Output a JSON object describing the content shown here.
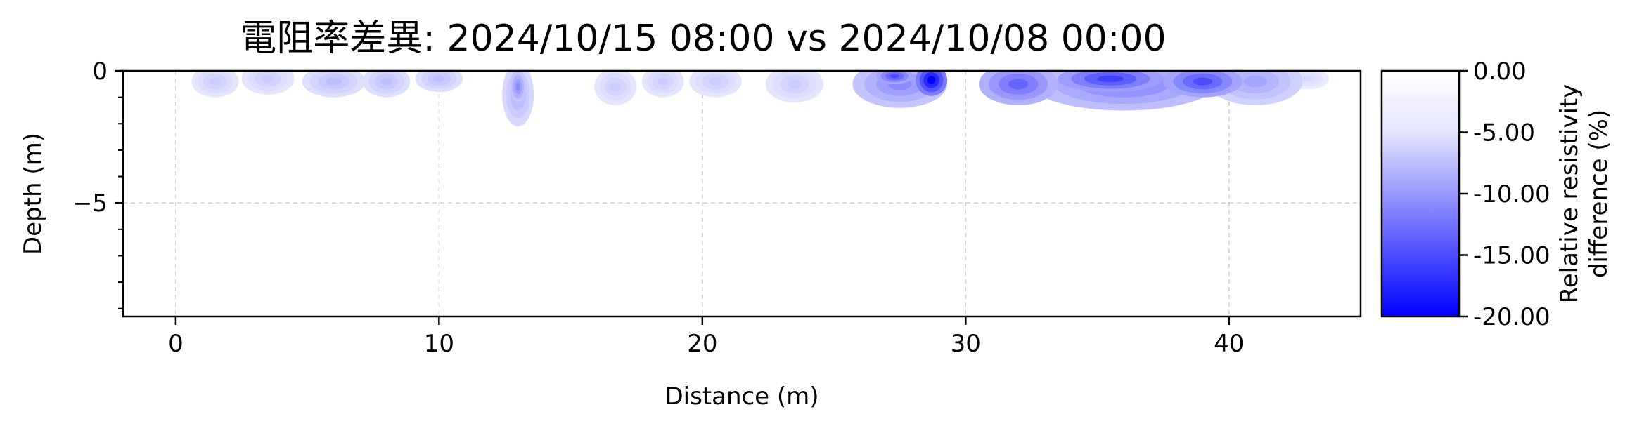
{
  "chart_data": {
    "type": "heatmap",
    "title": "電阻率差異: 2024/10/15 08:00 vs 2024/10/08 00:00",
    "xlabel": "Distance (m)",
    "ylabel": "Depth (m)",
    "xlim": [
      -2,
      45
    ],
    "ylim": [
      -9.3,
      0
    ],
    "xticks": [
      0,
      10,
      20,
      30,
      40
    ],
    "yticks": [
      0,
      -5
    ],
    "grid": true,
    "colorbar": {
      "label_line1": "Relative resistivity",
      "label_line2": "difference (%)",
      "range": [
        -20,
        0
      ],
      "ticks": [
        "0.00",
        "-5.00",
        "-10.00",
        "-15.00",
        "-20.00"
      ],
      "colors": [
        "#ffffff",
        "#0000ff"
      ]
    },
    "anomalies": [
      {
        "x": 1.5,
        "depth": 0.4,
        "rx": 0.9,
        "rz": 0.6,
        "value": -4
      },
      {
        "x": 3.5,
        "depth": 0.3,
        "rx": 1.0,
        "rz": 0.6,
        "value": -4
      },
      {
        "x": 6.0,
        "depth": 0.4,
        "rx": 1.2,
        "rz": 0.6,
        "value": -5
      },
      {
        "x": 8.0,
        "depth": 0.4,
        "rx": 0.9,
        "rz": 0.6,
        "value": -5
      },
      {
        "x": 10.0,
        "depth": 0.3,
        "rx": 0.9,
        "rz": 0.5,
        "value": -5
      },
      {
        "x": 13.0,
        "depth": 0.9,
        "rx": 0.6,
        "rz": 1.2,
        "value": -6
      },
      {
        "x": 13.0,
        "depth": 0.6,
        "rx": 0.3,
        "rz": 0.6,
        "value": -9
      },
      {
        "x": 16.7,
        "depth": 0.6,
        "rx": 0.8,
        "rz": 0.7,
        "value": -4
      },
      {
        "x": 18.5,
        "depth": 0.4,
        "rx": 0.8,
        "rz": 0.6,
        "value": -4
      },
      {
        "x": 20.5,
        "depth": 0.4,
        "rx": 1.0,
        "rz": 0.6,
        "value": -4
      },
      {
        "x": 23.5,
        "depth": 0.5,
        "rx": 1.1,
        "rz": 0.7,
        "value": -4
      },
      {
        "x": 27.5,
        "depth": 0.5,
        "rx": 1.8,
        "rz": 0.9,
        "value": -9
      },
      {
        "x": 28.7,
        "depth": 0.35,
        "rx": 0.6,
        "rz": 0.6,
        "value": -20
      },
      {
        "x": 27.3,
        "depth": 0.2,
        "rx": 0.7,
        "rz": 0.3,
        "value": -14
      },
      {
        "x": 32.0,
        "depth": 0.5,
        "rx": 1.5,
        "rz": 0.8,
        "value": -12
      },
      {
        "x": 36.0,
        "depth": 0.5,
        "rx": 3.5,
        "rz": 1.0,
        "value": -10
      },
      {
        "x": 35.5,
        "depth": 0.3,
        "rx": 2.0,
        "rz": 0.5,
        "value": -15
      },
      {
        "x": 39.0,
        "depth": 0.4,
        "rx": 1.5,
        "rz": 0.6,
        "value": -14
      },
      {
        "x": 41.0,
        "depth": 0.4,
        "rx": 1.8,
        "rz": 0.9,
        "value": -7
      },
      {
        "x": 43.0,
        "depth": 0.3,
        "rx": 0.8,
        "rz": 0.4,
        "value": -3
      }
    ]
  }
}
